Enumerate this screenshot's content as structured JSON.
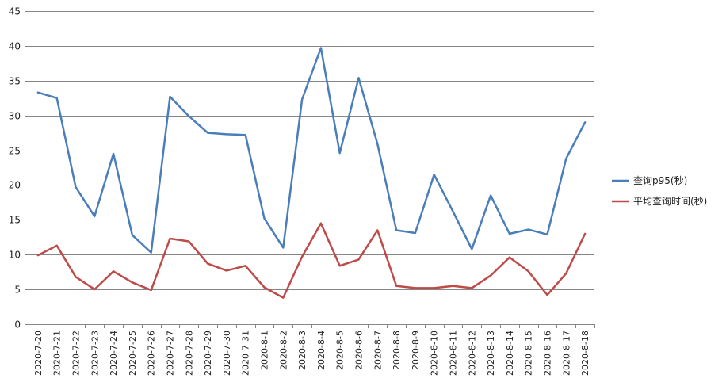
{
  "chart_data": {
    "type": "line",
    "categories": [
      "2020-7-20",
      "2020-7-21",
      "2020-7-22",
      "2020-7-23",
      "2020-7-24",
      "2020-7-25",
      "2020-7-26",
      "2020-7-27",
      "2020-7-28",
      "2020-7-29",
      "2020-7-30",
      "2020-7-31",
      "2020-8-1",
      "2020-8-2",
      "2020-8-3",
      "2020-8-4",
      "2020-8-5",
      "2020-8-6",
      "2020-8-7",
      "2020-8-8",
      "2020-8-9",
      "2020-8-10",
      "2020-8-11",
      "2020-8-12",
      "2020-8-13",
      "2020-8-14",
      "2020-8-15",
      "2020-8-16",
      "2020-8-17",
      "2020-8-18"
    ],
    "series": [
      {
        "name": "查询p95(秒)",
        "color": "#4a7ebb",
        "values": [
          33.3,
          32.5,
          19.7,
          15.5,
          24.5,
          12.8,
          10.3,
          32.7,
          29.9,
          27.5,
          27.3,
          27.2,
          15.2,
          11.0,
          32.3,
          39.7,
          24.6,
          35.4,
          25.9,
          13.5,
          13.1,
          21.5,
          16.2,
          10.8,
          18.5,
          13.0,
          13.6,
          12.9,
          23.8,
          29.0
        ]
      },
      {
        "name": "平均查询时间(秒)",
        "color": "#be4b48",
        "values": [
          9.9,
          11.3,
          6.8,
          5.0,
          7.6,
          6.0,
          4.9,
          12.3,
          11.9,
          8.7,
          7.7,
          8.4,
          5.3,
          3.8,
          9.7,
          14.5,
          8.4,
          9.3,
          13.5,
          5.5,
          5.2,
          5.2,
          5.5,
          5.2,
          7.0,
          9.6,
          7.6,
          4.2,
          7.3,
          13.0
        ]
      }
    ],
    "title": "",
    "xlabel": "",
    "ylabel": "",
    "ylim": [
      0,
      45
    ],
    "yticks": [
      "0",
      "5",
      "10",
      "15",
      "20",
      "25",
      "30",
      "35",
      "40",
      "45"
    ],
    "ytick_values": [
      0,
      5,
      10,
      15,
      20,
      25,
      30,
      35,
      40,
      45
    ],
    "grid": true,
    "legend_position": "right",
    "gridline_color": "#868686",
    "axis_color": "#868686"
  }
}
